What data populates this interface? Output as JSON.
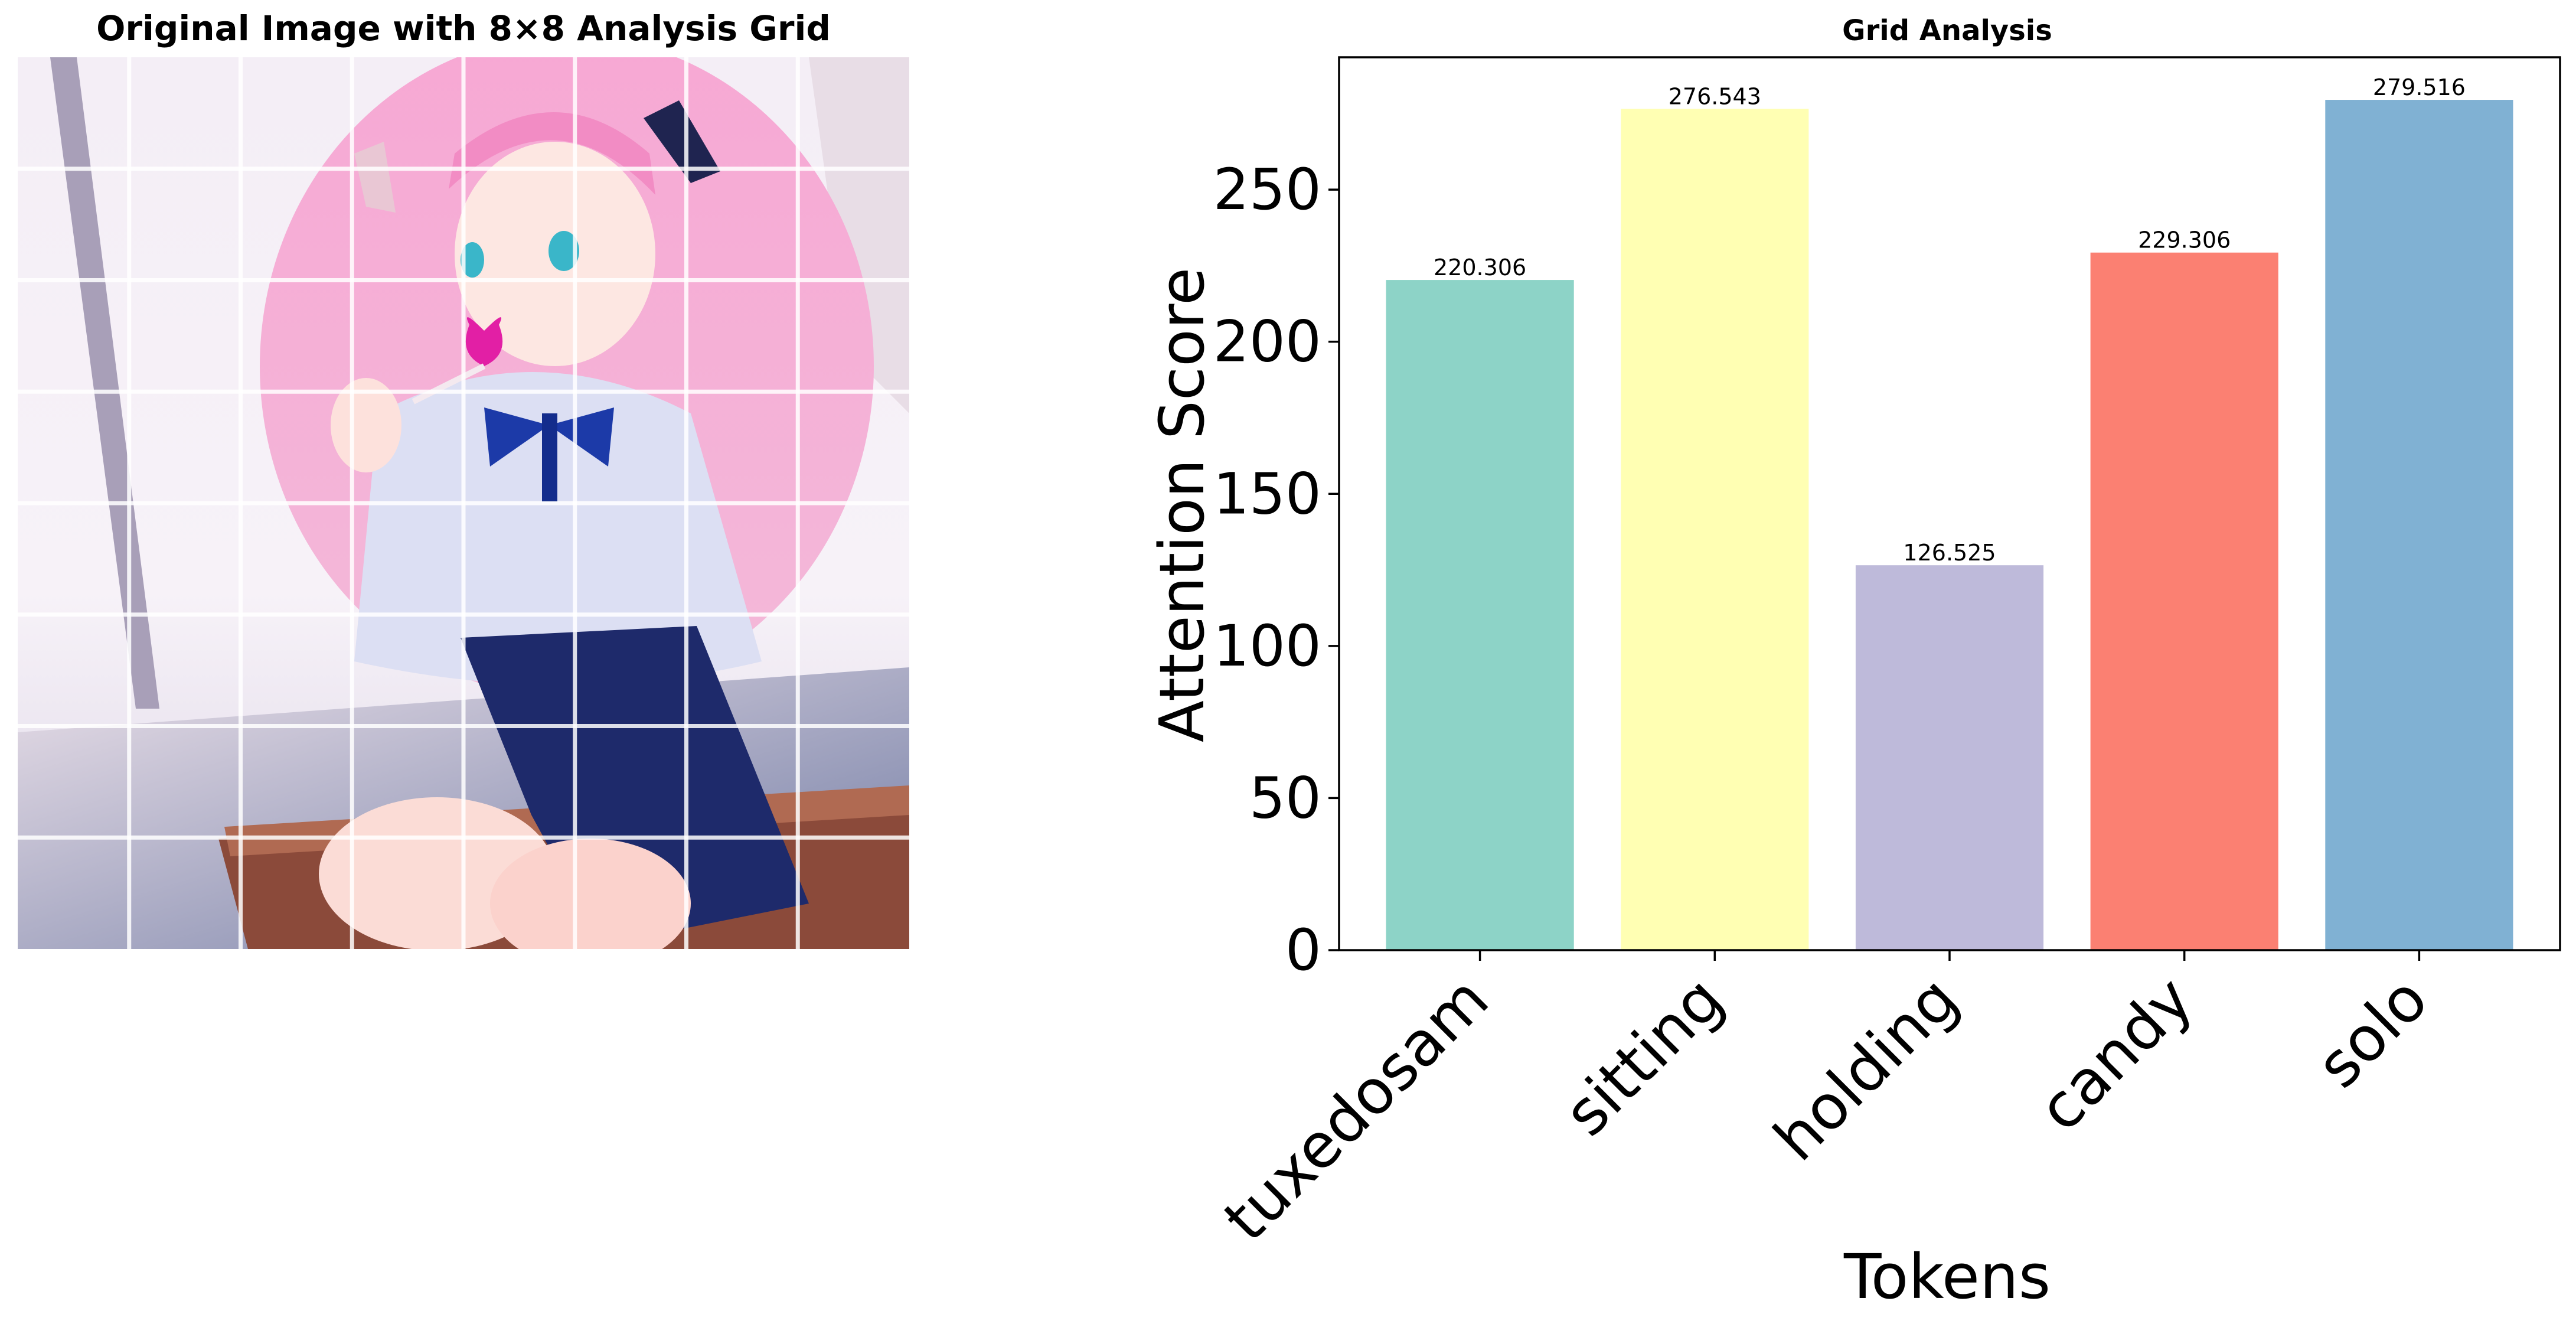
{
  "left_panel": {
    "title": "Original Image with 8×8 Analysis Grid",
    "grid_divisions": 8,
    "image_description_icon": "anime-girl-illustration"
  },
  "chart_data": {
    "type": "bar",
    "title": "Grid Analysis",
    "xlabel": "Tokens",
    "ylabel": "Attention Score",
    "categories": [
      "tuxedosam",
      "sitting",
      "holding",
      "candy",
      "solo"
    ],
    "values": [
      220.306,
      276.543,
      126.525,
      229.306,
      279.516
    ],
    "value_labels": [
      "220.306",
      "276.543",
      "126.525",
      "229.306",
      "279.516"
    ],
    "colors": [
      "#8dd3c7",
      "#ffffb3",
      "#bebada",
      "#fb8072",
      "#80b1d3"
    ],
    "ylim": [
      0,
      293.5
    ],
    "yticks": [
      0,
      50,
      100,
      150,
      200,
      250
    ],
    "grid": false,
    "legend": "none"
  }
}
